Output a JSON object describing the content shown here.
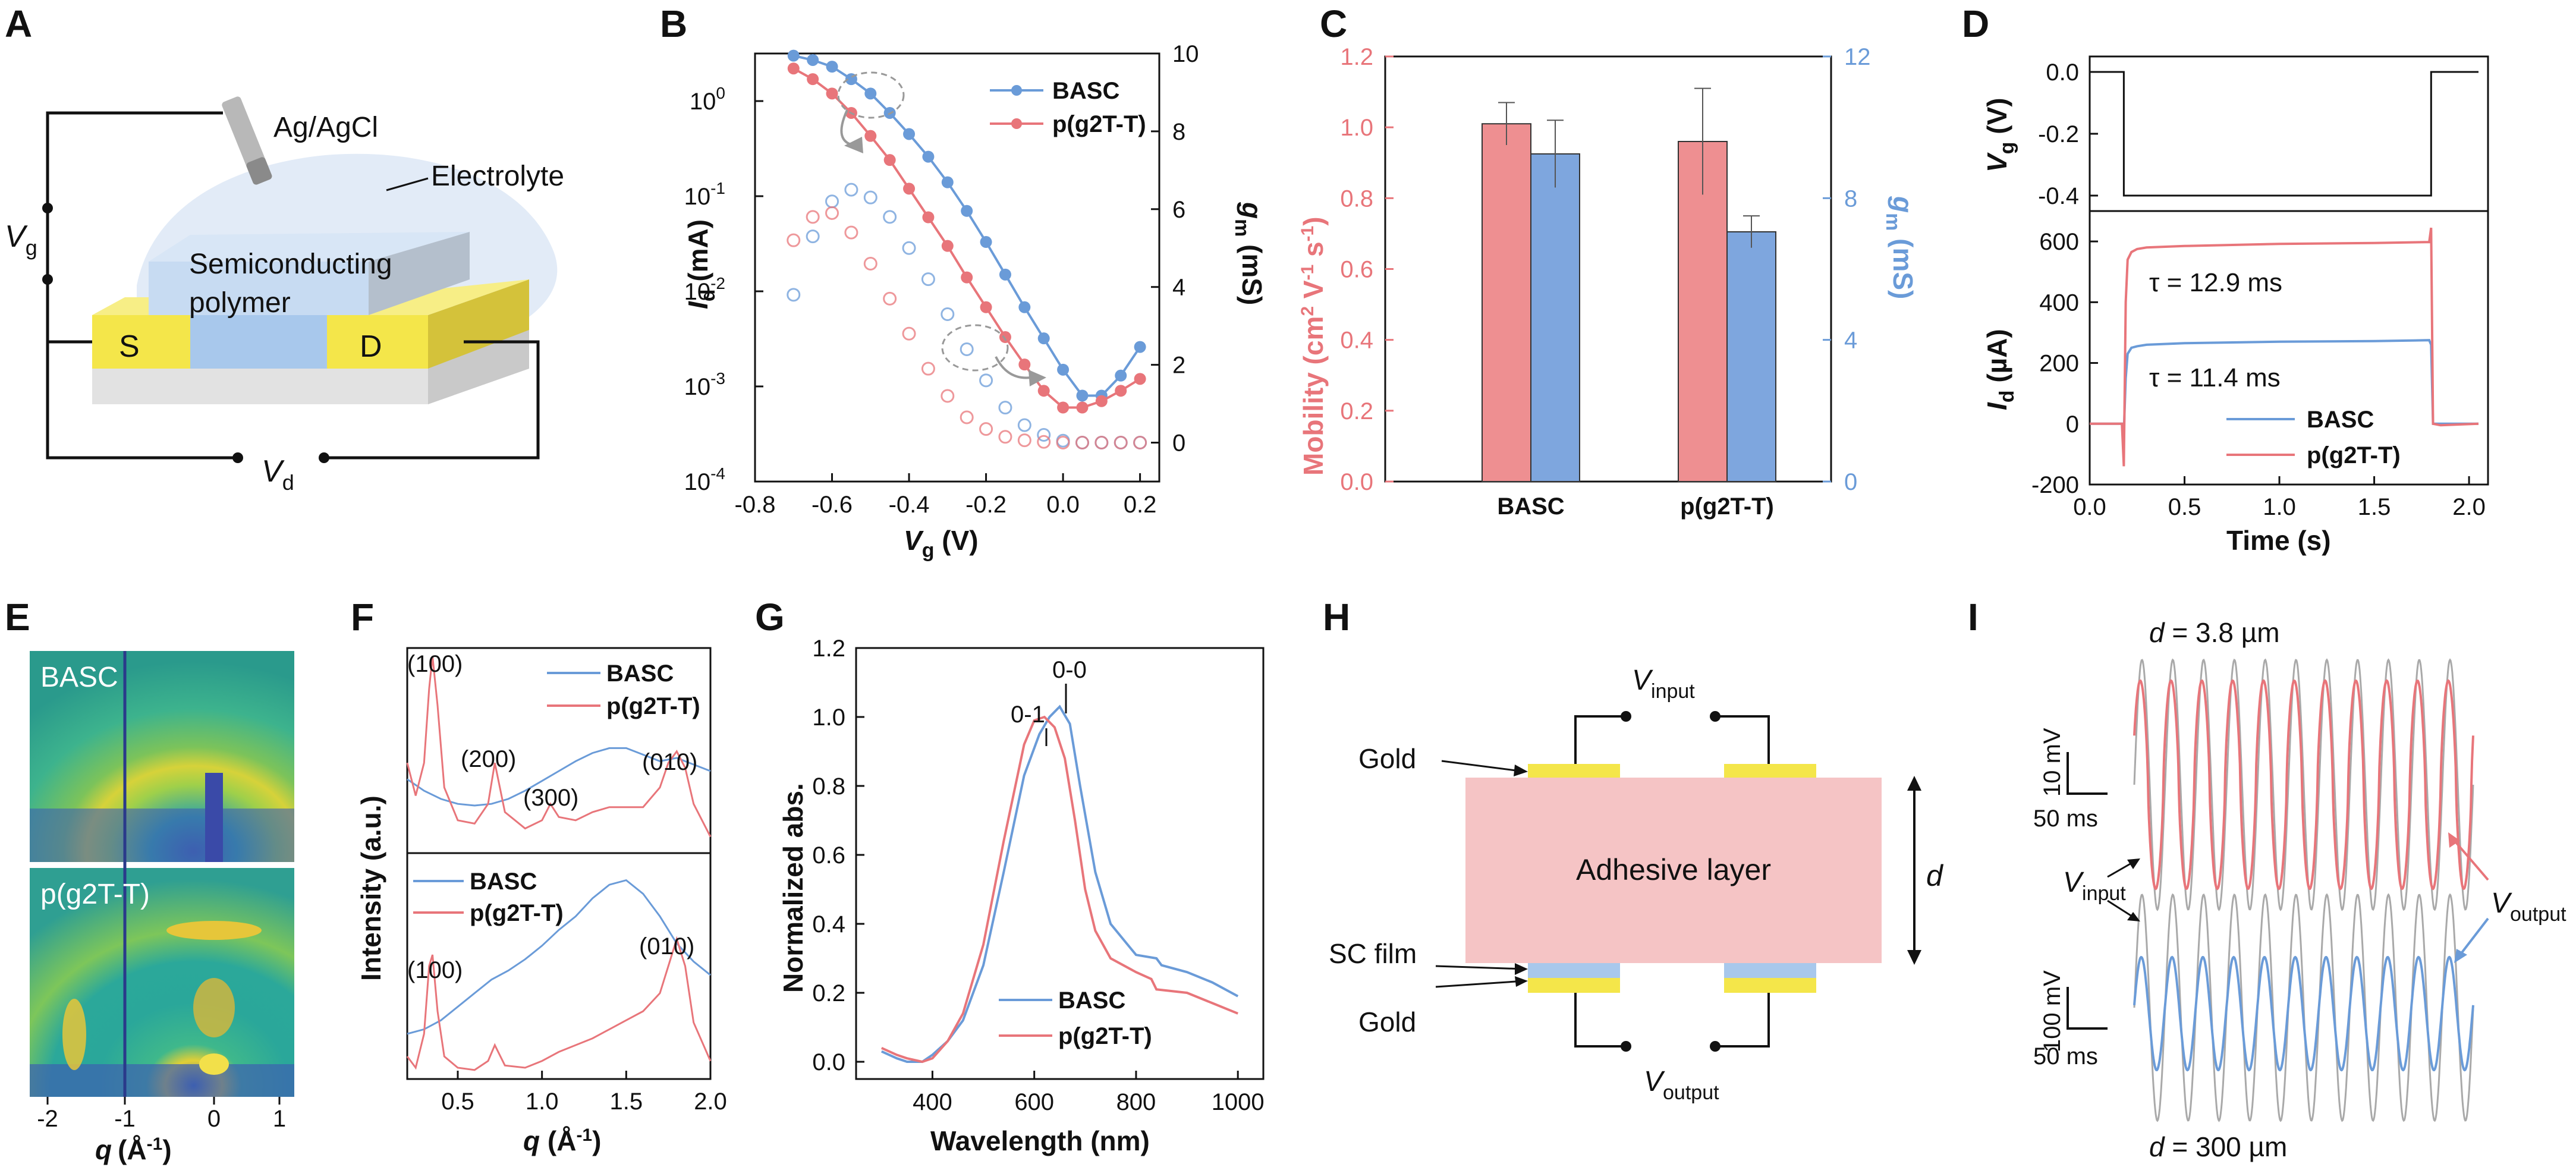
{
  "colors": {
    "red": "#e8757a",
    "blue": "#6a9bd8",
    "red_fill": "#ee8f91",
    "blue_fill": "#7ea6de",
    "grey": "#a9a9a9",
    "yellow": "#f4e64a",
    "pink": "#f5c4c5",
    "lightblue": "#a8c8ec"
  },
  "panels": {
    "A": "A",
    "B": "B",
    "C": "C",
    "D": "D",
    "E": "E",
    "F": "F",
    "G": "G",
    "H": "H",
    "I": "I"
  },
  "panel_a": {
    "ref_electrode": "Ag/AgCl",
    "electrolyte": "Electrolyte",
    "polymer_line1": "Semiconducting",
    "polymer_line2": "polymer",
    "source": "S",
    "drain": "D",
    "vg": "V",
    "vg_sub": "g",
    "vd": "V",
    "vd_sub": "d"
  },
  "panel_e": {
    "label_top": "BASC",
    "label_bottom": "p(g2T-T)",
    "xticks": [
      "-2",
      "-1",
      "0",
      "1"
    ],
    "xlabel": "q",
    "xunit": "(Å",
    "xunit_exp": "-1",
    "xunit_close": ")"
  },
  "panel_h": {
    "v_input": "V",
    "v_input_sub": "input",
    "v_output": "V",
    "v_output_sub": "output",
    "gold_top": "Gold",
    "gold_bottom": "Gold",
    "sc_film": "SC film",
    "adhesive": "Adhesive layer",
    "d_label": "d"
  },
  "panel_i": {
    "title_top_prefix": "d",
    "title_top": " = 3.8 µm",
    "title_bottom_prefix": "d",
    "title_bottom": " = 300 µm",
    "scale_top_v": "10 mV",
    "scale_top_t": "50 ms",
    "scale_bottom_v": "100 mV",
    "scale_bottom_t": "50 ms",
    "v_input": "V",
    "v_input_sub": "input",
    "v_output": "V",
    "v_output_sub": "output"
  },
  "chart_data": [
    {
      "panel": "B",
      "type": "line",
      "x_label": "V",
      "x_label_sub": "g",
      "x_unit": " (V)",
      "y_label": "I",
      "y_label_sub": "d",
      "y_unit": " (mA)",
      "y2_label": "g",
      "y2_label_sub": "m",
      "y2_unit": " (mS)",
      "xlim": [
        -0.8,
        0.25
      ],
      "ylim_log": [
        -4,
        0.5
      ],
      "y2lim": [
        -1,
        10
      ],
      "x_ticks": [
        "-0.8",
        "-0.6",
        "-0.4",
        "-0.2",
        "0.0",
        "0.2"
      ],
      "y_ticks": [
        "10",
        "10",
        "10",
        "10",
        "10"
      ],
      "y_ticks_exp": [
        "-4",
        "-3",
        "-2",
        "-1",
        "0"
      ],
      "y2_ticks": [
        "0",
        "2",
        "4",
        "6",
        "8",
        "10"
      ],
      "series": [
        {
          "name": "BASC",
          "axis": "left_log",
          "style": "filled",
          "x": [
            -0.7,
            -0.65,
            -0.6,
            -0.55,
            -0.5,
            -0.45,
            -0.4,
            -0.35,
            -0.3,
            -0.25,
            -0.2,
            -0.15,
            -0.1,
            -0.05,
            0.0,
            0.05,
            0.1,
            0.15,
            0.2
          ],
          "y": [
            3.0,
            2.7,
            2.3,
            1.7,
            1.2,
            0.75,
            0.45,
            0.26,
            0.14,
            0.07,
            0.033,
            0.015,
            0.0068,
            0.0032,
            0.0015,
            0.0008,
            0.0008,
            0.0013,
            0.0026
          ]
        },
        {
          "name": "p(g2T-T)",
          "axis": "left_log",
          "style": "filled",
          "x": [
            -0.7,
            -0.65,
            -0.6,
            -0.55,
            -0.5,
            -0.45,
            -0.4,
            -0.35,
            -0.3,
            -0.25,
            -0.2,
            -0.15,
            -0.1,
            -0.05,
            0.0,
            0.05,
            0.1,
            0.15,
            0.2
          ],
          "y": [
            2.2,
            1.7,
            1.2,
            0.75,
            0.43,
            0.24,
            0.12,
            0.06,
            0.03,
            0.014,
            0.0068,
            0.0033,
            0.0017,
            0.0009,
            0.0006,
            0.0006,
            0.0007,
            0.0009,
            0.0012
          ]
        },
        {
          "name": "BASC gm",
          "axis": "right",
          "style": "open",
          "x": [
            -0.7,
            -0.65,
            -0.6,
            -0.55,
            -0.5,
            -0.45,
            -0.4,
            -0.35,
            -0.3,
            -0.25,
            -0.2,
            -0.15,
            -0.1,
            -0.05,
            0.0,
            0.05,
            0.1,
            0.15,
            0.2
          ],
          "y": [
            3.8,
            5.3,
            6.2,
            6.5,
            6.3,
            5.8,
            5.0,
            4.2,
            3.3,
            2.4,
            1.6,
            0.9,
            0.45,
            0.2,
            0.05,
            0.0,
            0.0,
            0.0,
            0.0
          ]
        },
        {
          "name": "p(g2T-T) gm",
          "axis": "right",
          "style": "open",
          "x": [
            -0.7,
            -0.65,
            -0.6,
            -0.55,
            -0.5,
            -0.45,
            -0.4,
            -0.35,
            -0.3,
            -0.25,
            -0.2,
            -0.15,
            -0.1,
            -0.05,
            0.0,
            0.05,
            0.1,
            0.15,
            0.2
          ],
          "y": [
            5.2,
            5.8,
            5.9,
            5.4,
            4.6,
            3.7,
            2.8,
            1.9,
            1.2,
            0.65,
            0.35,
            0.15,
            0.06,
            0.02,
            0.0,
            0.0,
            0.0,
            0.0,
            0.0
          ]
        }
      ],
      "legend": [
        "BASC",
        "p(g2T-T)"
      ]
    },
    {
      "panel": "C",
      "type": "bar",
      "categories": [
        "BASC",
        "p(g2T-T)"
      ],
      "y_label": "Mobility (cm",
      "y_label_exp1": "2",
      "y_label_mid": " V",
      "y_label_exp2": "-1",
      "y_label_mid2": " s",
      "y_label_exp3": "-1",
      "y_label_end": ")",
      "y2_label": "g",
      "y2_label_sub": "m",
      "y2_unit": " (mS)",
      "ylim": [
        0,
        1.2
      ],
      "y2lim": [
        0,
        12
      ],
      "y_ticks": [
        "0.0",
        "0.2",
        "0.4",
        "0.6",
        "0.8",
        "1.0",
        "1.2"
      ],
      "y2_ticks": [
        "0",
        "4",
        "8",
        "12"
      ],
      "series": [
        {
          "name": "Mobility",
          "axis": "left",
          "values": [
            1.01,
            0.96
          ],
          "errors": [
            0.06,
            0.15
          ]
        },
        {
          "name": "gm",
          "axis": "right",
          "values": [
            9.25,
            7.05
          ],
          "errors": [
            0.95,
            0.45
          ]
        }
      ]
    },
    {
      "panel": "D",
      "type": "line",
      "x_label": "Time (s)",
      "top_y_label": "V",
      "top_y_label_sub": "g",
      "top_y_unit": " (V)",
      "y_label": "I",
      "y_label_sub": "d",
      "y_unit": " (µA)",
      "xlim": [
        0,
        2.1
      ],
      "top_ylim": [
        -0.45,
        0.05
      ],
      "ylim": [
        -200,
        700
      ],
      "x_ticks": [
        "0.0",
        "0.5",
        "1.0",
        "1.5",
        "2.0"
      ],
      "top_y_ticks": [
        "0.0",
        "-0.2",
        "-0.4"
      ],
      "y_ticks": [
        "-200",
        "0",
        "200",
        "400",
        "600"
      ],
      "gate_pulse": {
        "x": [
          0,
          0.18,
          0.18,
          1.8,
          1.8,
          2.05
        ],
        "y": [
          0,
          0,
          -0.4,
          -0.4,
          0,
          0
        ]
      },
      "series": [
        {
          "name": "BASC",
          "tau": "τ = 11.4 ms",
          "x": [
            0.0,
            0.17,
            0.18,
            0.19,
            0.2,
            0.22,
            0.25,
            0.3,
            0.5,
            1.0,
            1.5,
            1.79,
            1.8,
            1.81,
            1.85,
            2.05
          ],
          "y": [
            0,
            0,
            -30,
            150,
            230,
            250,
            255,
            260,
            265,
            270,
            272,
            275,
            260,
            0,
            0,
            0
          ]
        },
        {
          "name": "p(g2T-T)",
          "tau": "τ = 12.9 ms",
          "x": [
            0.0,
            0.17,
            0.18,
            0.19,
            0.2,
            0.22,
            0.25,
            0.3,
            0.5,
            1.0,
            1.5,
            1.79,
            1.8,
            1.81,
            1.85,
            2.05
          ],
          "y": [
            0,
            0,
            -140,
            400,
            540,
            565,
            575,
            580,
            585,
            592,
            595,
            598,
            645,
            0,
            -5,
            0
          ]
        }
      ],
      "legend": [
        "BASC",
        "p(g2T-T)"
      ]
    },
    {
      "panel": "F",
      "type": "line",
      "x_label": "q",
      "x_unit": " (Å",
      "x_unit_exp": "-1",
      "x_unit_close": ")",
      "y_label": "Intensity (a.u.)",
      "xlim": [
        0.2,
        2.0
      ],
      "x_ticks": [
        "0.5",
        "1.0",
        "1.5",
        "2.0"
      ],
      "top_annotations": [
        "(100)",
        "(200)",
        "(300)",
        "(010)"
      ],
      "bottom_annotations": [
        "(100)",
        "(010)"
      ],
      "top_series": [
        {
          "name": "BASC",
          "x": [
            0.2,
            0.3,
            0.4,
            0.5,
            0.6,
            0.7,
            0.8,
            0.9,
            1.0,
            1.1,
            1.2,
            1.3,
            1.4,
            1.5,
            1.6,
            1.7,
            1.8,
            1.9,
            2.0
          ],
          "y": [
            0.45,
            0.38,
            0.33,
            0.3,
            0.29,
            0.3,
            0.33,
            0.38,
            0.44,
            0.5,
            0.56,
            0.61,
            0.64,
            0.64,
            0.6,
            0.56,
            0.58,
            0.54,
            0.5
          ]
        },
        {
          "name": "p(g2T-T)",
          "x": [
            0.2,
            0.25,
            0.3,
            0.33,
            0.35,
            0.38,
            0.42,
            0.5,
            0.6,
            0.68,
            0.72,
            0.78,
            0.9,
            1.0,
            1.05,
            1.1,
            1.2,
            1.3,
            1.4,
            1.5,
            1.6,
            1.7,
            1.75,
            1.8,
            1.85,
            1.9,
            2.0
          ],
          "y": [
            0.55,
            0.35,
            0.55,
            1.0,
            1.2,
            0.9,
            0.4,
            0.2,
            0.18,
            0.3,
            0.55,
            0.25,
            0.15,
            0.2,
            0.3,
            0.22,
            0.2,
            0.25,
            0.28,
            0.28,
            0.28,
            0.4,
            0.55,
            0.62,
            0.52,
            0.3,
            0.1
          ]
        }
      ],
      "bottom_series": [
        {
          "name": "BASC",
          "x": [
            0.2,
            0.3,
            0.4,
            0.5,
            0.6,
            0.7,
            0.8,
            0.9,
            1.0,
            1.1,
            1.2,
            1.3,
            1.4,
            1.5,
            1.6,
            1.7,
            1.8,
            1.9,
            2.0
          ],
          "y": [
            0.2,
            0.22,
            0.26,
            0.32,
            0.38,
            0.44,
            0.48,
            0.53,
            0.59,
            0.66,
            0.72,
            0.8,
            0.86,
            0.88,
            0.82,
            0.72,
            0.6,
            0.52,
            0.46
          ]
        },
        {
          "name": "p(g2T-T)",
          "x": [
            0.2,
            0.25,
            0.3,
            0.33,
            0.35,
            0.38,
            0.42,
            0.5,
            0.6,
            0.68,
            0.72,
            0.78,
            0.9,
            1.0,
            1.1,
            1.2,
            1.3,
            1.4,
            1.5,
            1.6,
            1.7,
            1.75,
            1.8,
            1.85,
            1.9,
            2.0
          ],
          "y": [
            0.1,
            0.05,
            0.2,
            0.5,
            0.55,
            0.3,
            0.1,
            0.05,
            0.04,
            0.08,
            0.15,
            0.06,
            0.05,
            0.08,
            0.12,
            0.15,
            0.18,
            0.22,
            0.26,
            0.3,
            0.38,
            0.5,
            0.62,
            0.5,
            0.25,
            0.08
          ]
        }
      ],
      "legend": [
        "BASC",
        "p(g2T-T)"
      ]
    },
    {
      "panel": "G",
      "type": "line",
      "x_label": "Wavelength (nm)",
      "y_label": "Normalized abs.",
      "xlim": [
        250,
        1050
      ],
      "ylim": [
        -0.05,
        1.2
      ],
      "x_ticks": [
        "400",
        "600",
        "800",
        "1000"
      ],
      "y_ticks": [
        "0.0",
        "0.2",
        "0.4",
        "0.6",
        "0.8",
        "1.0",
        "1.2"
      ],
      "annotations": [
        "0-1",
        "0-0"
      ],
      "series": [
        {
          "name": "BASC",
          "x": [
            300,
            330,
            350,
            380,
            400,
            430,
            460,
            500,
            540,
            580,
            610,
            630,
            650,
            670,
            690,
            720,
            750,
            800,
            840,
            850,
            900,
            950,
            1000
          ],
          "y": [
            0.03,
            0.01,
            0.0,
            0.0,
            0.02,
            0.06,
            0.12,
            0.28,
            0.55,
            0.83,
            0.95,
            1.0,
            1.03,
            0.98,
            0.8,
            0.55,
            0.4,
            0.31,
            0.3,
            0.28,
            0.26,
            0.23,
            0.19
          ]
        },
        {
          "name": "p(g2T-T)",
          "x": [
            300,
            330,
            350,
            380,
            400,
            430,
            460,
            500,
            540,
            580,
            600,
            620,
            640,
            660,
            680,
            700,
            720,
            750,
            800,
            830,
            840,
            900,
            950,
            1000
          ],
          "y": [
            0.04,
            0.02,
            0.01,
            0.0,
            0.01,
            0.06,
            0.14,
            0.34,
            0.64,
            0.92,
            0.99,
            1.0,
            0.97,
            0.88,
            0.7,
            0.5,
            0.38,
            0.3,
            0.26,
            0.24,
            0.21,
            0.2,
            0.17,
            0.14
          ]
        }
      ],
      "legend": [
        "BASC",
        "p(g2T-T)"
      ]
    }
  ]
}
